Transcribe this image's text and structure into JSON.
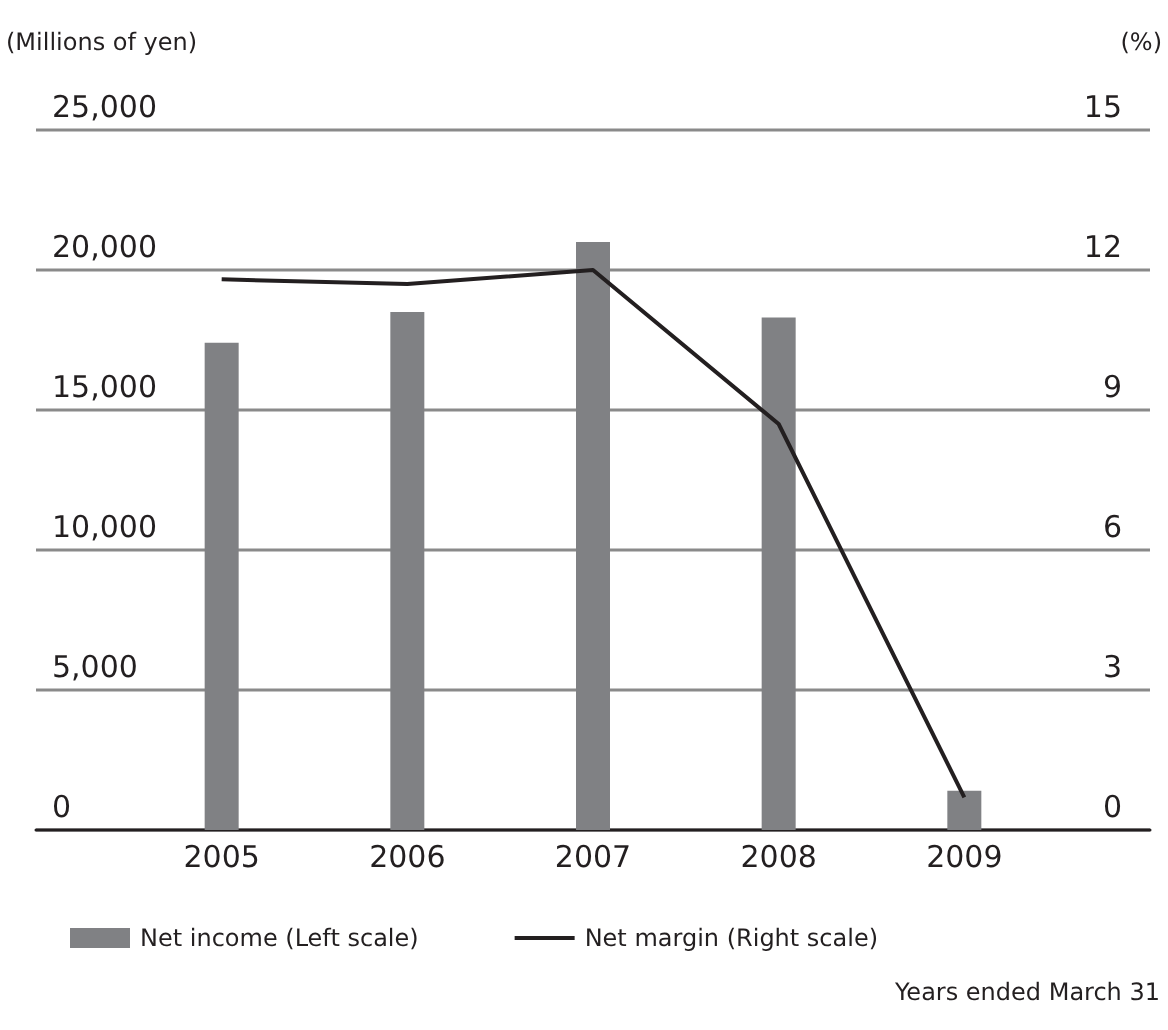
{
  "chart_data": {
    "type": "bar",
    "ylabel": "(Millions of yen)",
    "y2label": "(%)",
    "categories": [
      "2005",
      "2006",
      "2007",
      "2008",
      "2009"
    ],
    "series": [
      {
        "name": "Net income (Left scale)",
        "color": "#808184",
        "values": [
          17400,
          18500,
          21000,
          18300,
          1400
        ]
      },
      {
        "name": "Net margin (Right scale)",
        "type": "line",
        "axis": "y2",
        "color": "#231f20",
        "marker": "none",
        "values": [
          11.8,
          11.7,
          12.0,
          8.7,
          0.7
        ]
      }
    ],
    "ylim": [
      0,
      25000
    ],
    "yticks": [
      0,
      {
        "value": 5000,
        "label": "5,000"
      },
      {
        "value": 10000,
        "label": "10,000"
      },
      {
        "value": 15000,
        "label": "15,000"
      },
      {
        "value": 20000,
        "label": "20,000"
      },
      {
        "value": 25000,
        "label": "25,000"
      }
    ],
    "y2lim": [
      0,
      15
    ],
    "y2ticks": [
      0,
      3,
      6,
      9,
      12,
      15
    ],
    "grid": "y",
    "legend": "bottom",
    "annotations": [
      "Years ended March 31"
    ]
  }
}
